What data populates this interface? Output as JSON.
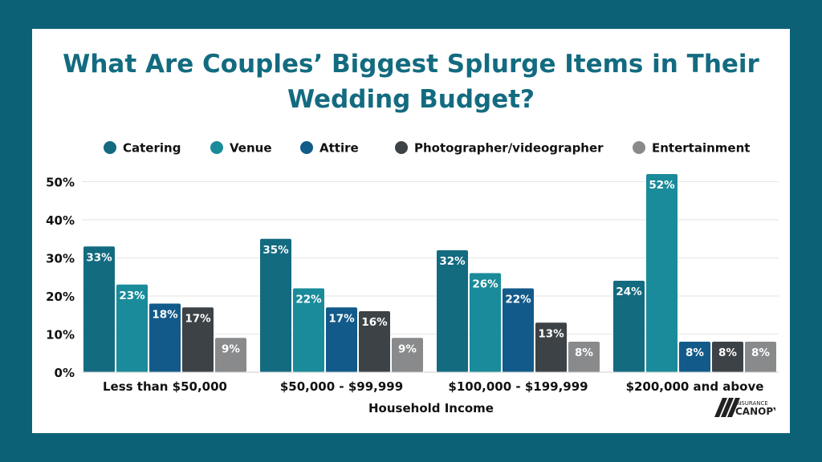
{
  "chart_data": {
    "type": "bar",
    "title_line1": "What Are Couples’ Biggest Splurge Items in Their",
    "title_line2": "Wedding Budget?",
    "xlabel": "Household Income",
    "ylabel": "",
    "ylim": [
      0,
      52
    ],
    "yticks": [
      "0%",
      "10%",
      "20%",
      "30%",
      "40%",
      "50%"
    ],
    "ytick_values": [
      0,
      10,
      20,
      30,
      40,
      50
    ],
    "categories": [
      "Less than $50,000",
      "$50,000 - $99,999",
      "$100,000 - $199,999",
      "$200,000 and above"
    ],
    "series": [
      {
        "name": "Catering",
        "color": "#136b80",
        "values": [
          33,
          35,
          32,
          24
        ],
        "labels": [
          "33%",
          "35%",
          "32%",
          "24%"
        ]
      },
      {
        "name": "Venue",
        "color": "#1a8b9a",
        "values": [
          23,
          22,
          26,
          52
        ],
        "labels": [
          "23%",
          "22%",
          "26%",
          "52%"
        ]
      },
      {
        "name": "Attire",
        "color": "#125a8a",
        "values": [
          18,
          17,
          22,
          8
        ],
        "labels": [
          "18%",
          "17%",
          "22%",
          "8%"
        ]
      },
      {
        "name": "Photographer/videographer",
        "color": "#3d4246",
        "values": [
          17,
          16,
          13,
          8
        ],
        "labels": [
          "17%",
          "16%",
          "13%",
          "8%"
        ]
      },
      {
        "name": "Entertainment",
        "color": "#888a8c",
        "values": [
          9,
          9,
          8,
          8
        ],
        "labels": [
          "9%",
          "9%",
          "8%",
          "8%"
        ]
      }
    ],
    "legend_position": "top",
    "grid": true
  },
  "logo": {
    "line1": "INSURANCE",
    "line2": "CANOPY"
  }
}
